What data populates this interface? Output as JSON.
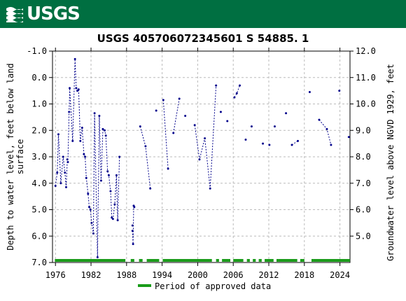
{
  "header": {
    "logo_text": "USGS",
    "banner_color": "#006f41"
  },
  "chart_data": {
    "type": "scatter",
    "title": "USGS 405706072345601 S 54885. 1",
    "ylabel_left": "Depth to water level, feet below land surface",
    "ylabel_left_lines": [
      "Depth to water level, feet below land",
      "surface"
    ],
    "ylabel_right": "Groundwater level above NGVD 1929, feet",
    "xlim": [
      1975.5,
      2025.7
    ],
    "ylim": [
      7.0,
      -1.0
    ],
    "y2lim": [
      4.0,
      12.0
    ],
    "xticks": [
      1976,
      1982,
      1988,
      1994,
      2000,
      2006,
      2012,
      2018,
      2024
    ],
    "yticks": [
      -1.0,
      0.0,
      1.0,
      2.0,
      3.0,
      4.0,
      5.0,
      6.0,
      7.0
    ],
    "yticks_labels": [
      "-1.0",
      "0.0",
      "1.0",
      "2.0",
      "3.0",
      "4.0",
      "5.0",
      "6.0",
      "7.0"
    ],
    "y2ticks": [
      5.0,
      6.0,
      7.0,
      8.0,
      9.0,
      10.0,
      11.0,
      12.0
    ],
    "y2ticks_labels": [
      "5.0",
      "6.0",
      "7.0",
      "8.0",
      "9.0",
      "10.0",
      "11.0",
      "12.0"
    ],
    "grid": true,
    "series_color": "#00008b",
    "approved_color": "#1a9c1a",
    "legend": {
      "label": "Period of approved data",
      "placement": "bottom-center"
    },
    "segments": [
      [
        [
          1976.0,
          4.1
        ],
        [
          1976.3,
          3.6
        ],
        [
          1976.5,
          2.15
        ],
        [
          1976.9,
          4.0
        ],
        [
          1977.3,
          3.0
        ],
        [
          1977.6,
          3.6
        ],
        [
          1977.8,
          4.15
        ],
        [
          1978.0,
          3.1
        ],
        [
          1978.1,
          3.2
        ],
        [
          1978.3,
          1.3
        ],
        [
          1978.4,
          0.4
        ],
        [
          1978.9,
          2.4
        ],
        [
          1979.3,
          -0.7
        ],
        [
          1979.5,
          0.4
        ],
        [
          1979.7,
          0.5
        ],
        [
          1979.9,
          0.45
        ],
        [
          1980.2,
          2.4
        ],
        [
          1980.5,
          1.9
        ],
        [
          1980.8,
          2.9
        ],
        [
          1981.0,
          3.0
        ],
        [
          1981.2,
          3.8
        ],
        [
          1981.5,
          4.4
        ],
        [
          1981.7,
          4.9
        ],
        [
          1981.9,
          5.0
        ],
        [
          1982.1,
          5.5
        ],
        [
          1982.4,
          5.9
        ],
        [
          1982.6,
          1.35
        ],
        [
          1983.1,
          6.8
        ],
        [
          1983.4,
          1.45
        ],
        [
          1983.7,
          3.9
        ],
        [
          1984.0,
          1.95
        ],
        [
          1984.3,
          2.0
        ],
        [
          1984.5,
          2.2
        ],
        [
          1984.8,
          3.55
        ],
        [
          1985.0,
          3.7
        ],
        [
          1985.3,
          4.3
        ],
        [
          1985.5,
          5.3
        ],
        [
          1985.7,
          5.35
        ],
        [
          1986.0,
          4.8
        ],
        [
          1986.3,
          3.7
        ],
        [
          1986.5,
          5.4
        ],
        [
          1986.8,
          3.0
        ]
      ],
      [
        [
          1989.0,
          5.8
        ],
        [
          1989.1,
          6.3
        ],
        [
          1989.2,
          4.85
        ],
        [
          1989.3,
          4.9
        ]
      ],
      [
        [
          1990.3,
          1.85
        ],
        [
          1991.2,
          2.6
        ],
        [
          1992.0,
          4.2
        ]
      ],
      [
        [
          1994.2,
          0.85
        ],
        [
          1995.0,
          3.45
        ]
      ],
      [
        [
          1995.9,
          2.1
        ],
        [
          1996.9,
          0.8
        ]
      ],
      [
        [
          1999.5,
          1.8
        ],
        [
          2000.3,
          3.1
        ],
        [
          2001.2,
          2.3
        ],
        [
          2002.1,
          4.2
        ],
        [
          2003.1,
          0.3
        ]
      ],
      [
        [
          2006.2,
          0.75
        ],
        [
          2006.6,
          0.6
        ],
        [
          2007.1,
          0.3
        ]
      ],
      [
        [
          2020.5,
          1.6
        ],
        [
          2021.8,
          1.95
        ],
        [
          2022.5,
          2.55
        ]
      ],
      [
        [
          2015.9,
          2.55
        ],
        [
          2016.9,
          2.4
        ]
      ]
    ],
    "points": [
      [
        1989.0,
        5.6
      ],
      [
        1993.0,
        1.25
      ],
      [
        1997.9,
        1.45
      ],
      [
        2003.9,
        1.3
      ],
      [
        2005.0,
        1.65
      ],
      [
        2008.1,
        2.35
      ],
      [
        2009.1,
        1.85
      ],
      [
        2011.0,
        2.5
      ],
      [
        2012.1,
        2.55
      ],
      [
        2013.0,
        1.85
      ],
      [
        2014.9,
        1.35
      ],
      [
        2018.9,
        0.55
      ],
      [
        2023.9,
        0.5
      ],
      [
        2025.5,
        2.25
      ]
    ],
    "approved_periods": [
      [
        1975.9,
        1987.8
      ],
      [
        1988.7,
        1989.3
      ],
      [
        1990.1,
        1990.7
      ],
      [
        1991.4,
        1993.5
      ],
      [
        1994.1,
        2002.4
      ],
      [
        2003.1,
        2003.6
      ],
      [
        2004.1,
        2005.5
      ],
      [
        2006.0,
        2007.7
      ],
      [
        2008.3,
        2008.8
      ],
      [
        2009.3,
        2009.8
      ],
      [
        2010.3,
        2010.8
      ],
      [
        2011.3,
        2012.8
      ],
      [
        2013.3,
        2016.8
      ],
      [
        2017.3,
        2018.0
      ],
      [
        2019.2,
        2025.7
      ]
    ]
  }
}
